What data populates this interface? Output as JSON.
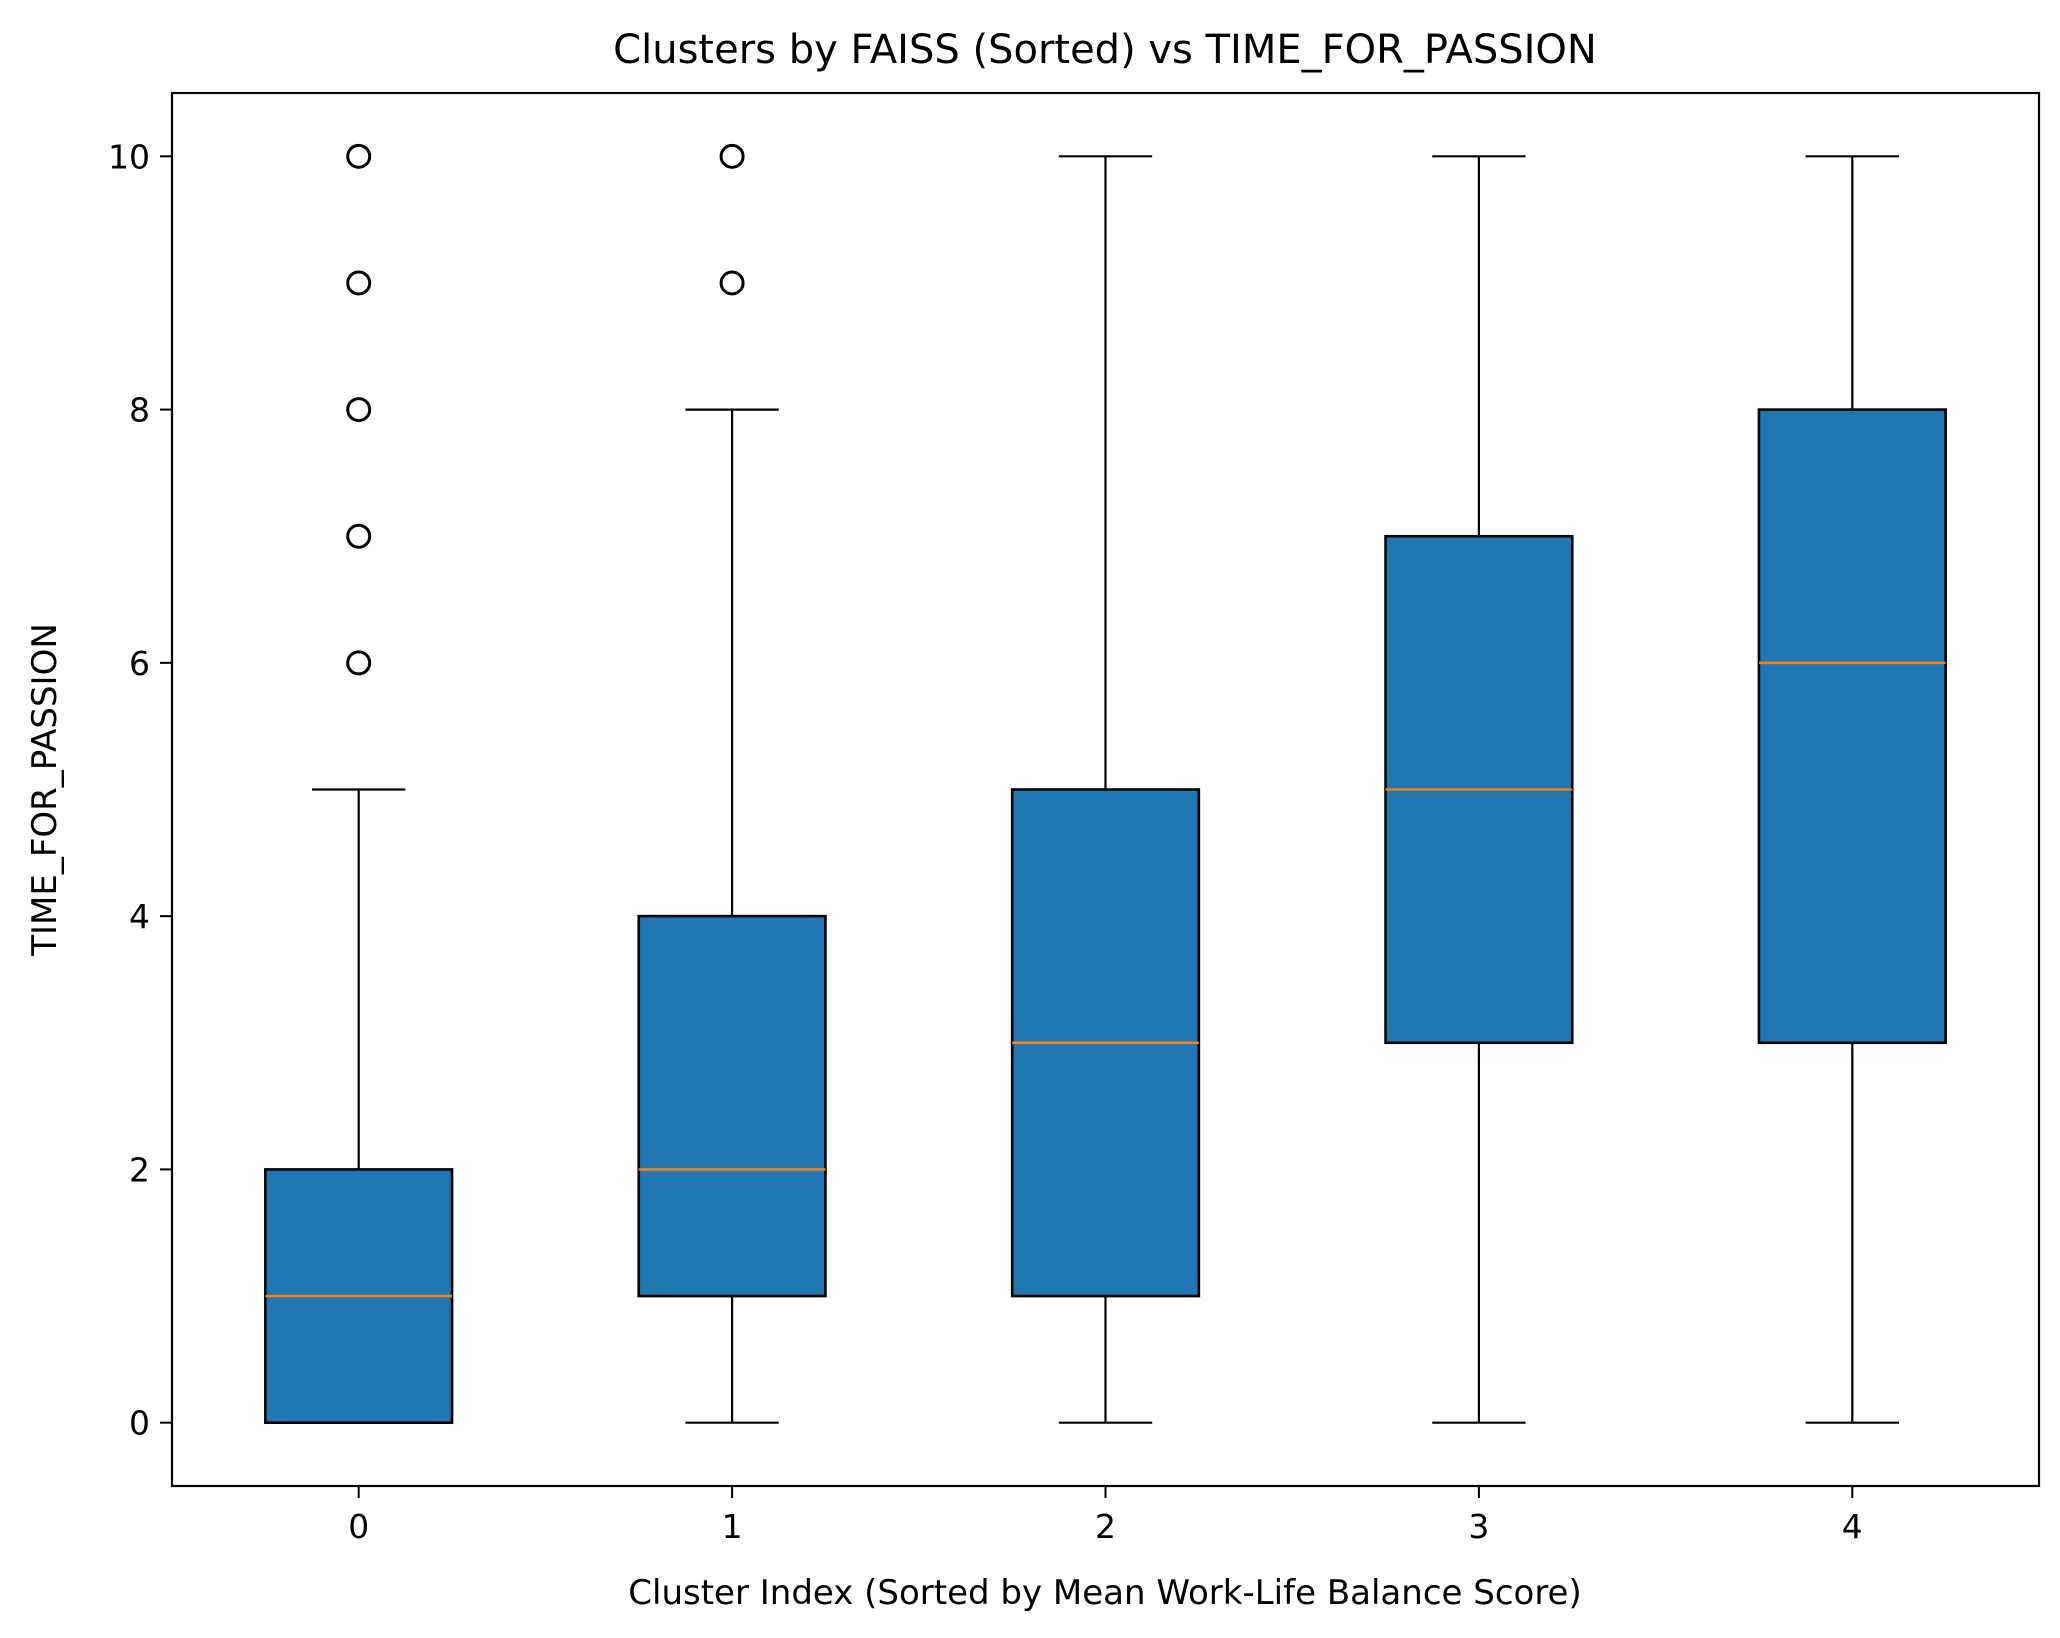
{
  "chart_data": {
    "type": "boxplot",
    "title": "Clusters by FAISS (Sorted) vs TIME_FOR_PASSION",
    "xlabel": "Cluster Index (Sorted by Mean Work-Life Balance Score)",
    "ylabel": "TIME_FOR_PASSION",
    "categories": [
      "0",
      "1",
      "2",
      "3",
      "4"
    ],
    "ylim": [
      -0.5,
      10.5
    ],
    "yticks": [
      0,
      2,
      4,
      6,
      8,
      10
    ],
    "grid": false,
    "legend": "none",
    "colors": {
      "box_fill": "#1f77b4",
      "median": "#ff7f0e",
      "edge": "#000000"
    },
    "boxes": [
      {
        "category": "0",
        "whisker_low": 0,
        "q1": 0,
        "median": 1,
        "q3": 2,
        "whisker_high": 5,
        "outliers": [
          6,
          7,
          8,
          9,
          10
        ]
      },
      {
        "category": "1",
        "whisker_low": 0,
        "q1": 1,
        "median": 2,
        "q3": 4,
        "whisker_high": 8,
        "outliers": [
          9,
          10
        ]
      },
      {
        "category": "2",
        "whisker_low": 0,
        "q1": 1,
        "median": 3,
        "q3": 5,
        "whisker_high": 10,
        "outliers": []
      },
      {
        "category": "3",
        "whisker_low": 0,
        "q1": 3,
        "median": 5,
        "q3": 7,
        "whisker_high": 10,
        "outliers": []
      },
      {
        "category": "4",
        "whisker_low": 0,
        "q1": 3,
        "median": 6,
        "q3": 8,
        "whisker_high": 10,
        "outliers": []
      }
    ]
  }
}
